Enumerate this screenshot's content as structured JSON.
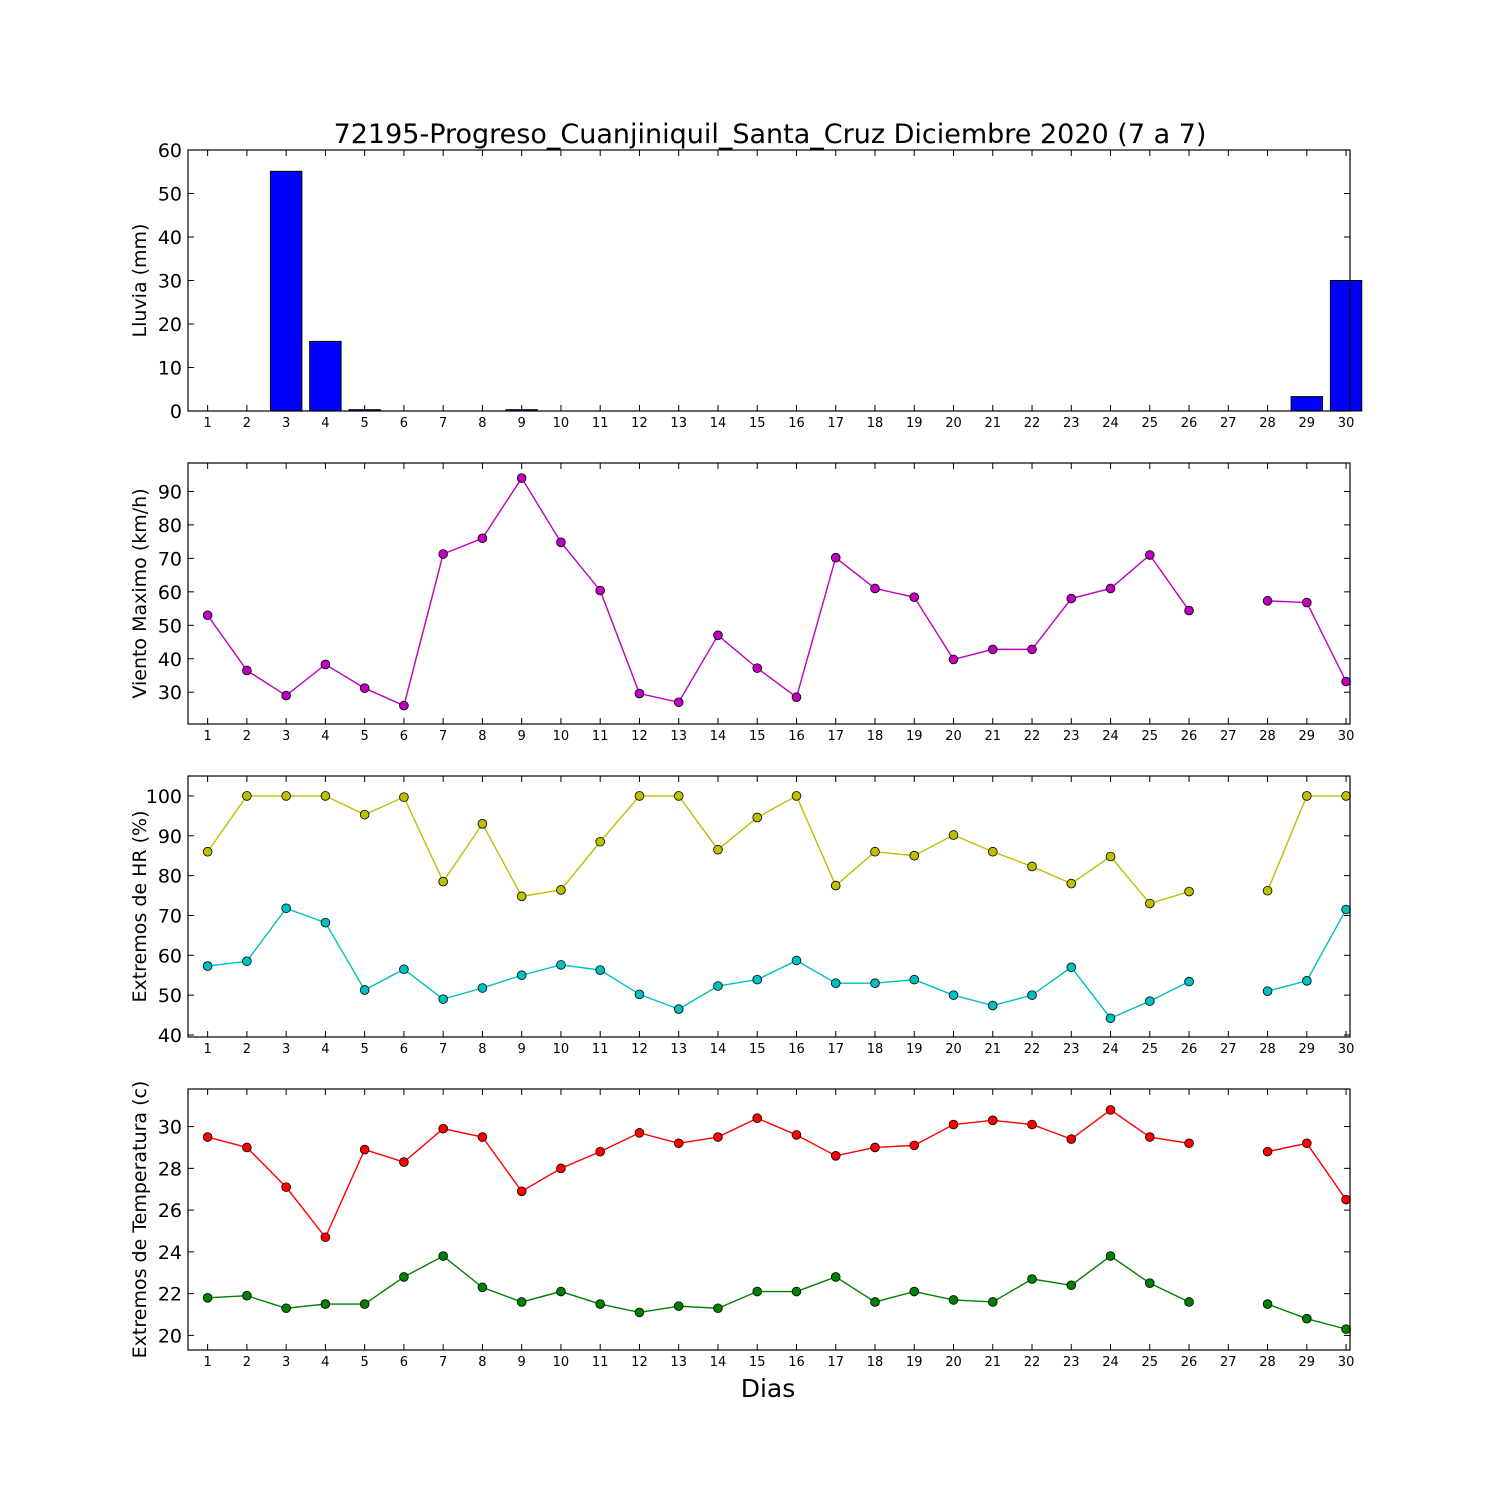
{
  "figure": {
    "title": "72195-Progreso_Cuanjiniquil_Santa_Cruz Diciembre 2020  (7 a 7)",
    "xlabel": "Dias"
  },
  "chart_data": [
    {
      "type": "bar",
      "ylabel": "Lluvia (mm)",
      "ylim": [
        0,
        60
      ],
      "yticks": [
        0,
        10,
        20,
        30,
        40,
        50,
        60
      ],
      "categories": [
        1,
        2,
        3,
        4,
        5,
        6,
        7,
        8,
        9,
        10,
        11,
        12,
        13,
        14,
        15,
        16,
        17,
        18,
        19,
        20,
        21,
        22,
        23,
        24,
        25,
        26,
        27,
        28,
        29,
        30
      ],
      "series": [
        {
          "color": "#0000ff",
          "values": [
            0,
            0,
            55.1,
            16,
            0.3,
            0,
            0,
            0,
            0.3,
            0,
            0,
            0,
            0,
            0,
            0,
            0,
            0,
            0,
            0,
            0,
            0,
            0,
            0,
            0,
            0,
            0,
            0,
            0,
            3.3,
            30
          ]
        }
      ]
    },
    {
      "type": "line",
      "ylabel": "Viento Maximo (km/h)",
      "ylim": [
        20.5,
        98.5
      ],
      "yticks": [
        30,
        40,
        50,
        60,
        70,
        80,
        90
      ],
      "x": [
        1,
        2,
        3,
        4,
        5,
        6,
        7,
        8,
        9,
        10,
        11,
        12,
        13,
        14,
        15,
        16,
        17,
        18,
        19,
        20,
        21,
        22,
        23,
        24,
        25,
        26,
        27,
        28,
        29,
        30
      ],
      "series": [
        {
          "color": "#bf00bf",
          "values": [
            53,
            36.5,
            29,
            38.3,
            31.2,
            26,
            71.3,
            76,
            94,
            74.8,
            60.4,
            29.6,
            27,
            47,
            37.2,
            28.5,
            70.2,
            61,
            58.4,
            39.8,
            42.8,
            42.8,
            58,
            61,
            71,
            54.4,
            null,
            57.3,
            56.8,
            33.2
          ]
        }
      ]
    },
    {
      "type": "line",
      "ylabel": "Extremos de HR (%)",
      "ylim": [
        39.5,
        105
      ],
      "yticks": [
        40,
        50,
        60,
        70,
        80,
        90,
        100
      ],
      "x": [
        1,
        2,
        3,
        4,
        5,
        6,
        7,
        8,
        9,
        10,
        11,
        12,
        13,
        14,
        15,
        16,
        17,
        18,
        19,
        20,
        21,
        22,
        23,
        24,
        25,
        26,
        27,
        28,
        29,
        30
      ],
      "series": [
        {
          "color": "#bfbf00",
          "values": [
            86,
            100,
            100,
            100,
            95.3,
            99.7,
            78.5,
            93,
            74.8,
            76.4,
            88.5,
            100,
            100,
            86.5,
            94.6,
            100,
            77.5,
            86,
            85,
            90.2,
            86,
            82.3,
            78,
            84.8,
            73,
            76,
            null,
            76.2,
            100,
            100
          ]
        },
        {
          "color": "#00bfbf",
          "values": [
            57.3,
            58.5,
            71.8,
            68.2,
            51.3,
            56.5,
            49,
            51.8,
            55,
            57.6,
            56.3,
            50.2,
            46.5,
            52.3,
            53.9,
            58.7,
            53,
            53,
            53.9,
            50,
            47.4,
            50,
            57,
            44.2,
            48.5,
            53.4,
            null,
            51,
            53.6,
            71.5
          ]
        }
      ]
    },
    {
      "type": "line",
      "ylabel": "Extremos de Temperatura (c)",
      "ylim": [
        19.3,
        31.8
      ],
      "yticks": [
        20,
        22,
        24,
        26,
        28,
        30
      ],
      "x": [
        1,
        2,
        3,
        4,
        5,
        6,
        7,
        8,
        9,
        10,
        11,
        12,
        13,
        14,
        15,
        16,
        17,
        18,
        19,
        20,
        21,
        22,
        23,
        24,
        25,
        26,
        27,
        28,
        29,
        30
      ],
      "series": [
        {
          "color": "#ff0000",
          "values": [
            29.5,
            29,
            27.1,
            24.7,
            28.9,
            28.3,
            29.9,
            29.5,
            26.9,
            28,
            28.8,
            29.7,
            29.2,
            29.5,
            30.4,
            29.6,
            28.6,
            29,
            29.1,
            30.1,
            30.3,
            30.1,
            29.4,
            30.8,
            29.5,
            29.2,
            null,
            28.8,
            29.2,
            26.5
          ]
        },
        {
          "color": "#008000",
          "values": [
            21.8,
            21.9,
            21.3,
            21.5,
            21.5,
            22.8,
            23.8,
            22.3,
            21.6,
            22.1,
            21.5,
            21.1,
            21.4,
            21.3,
            22.1,
            22.1,
            22.8,
            21.6,
            22.1,
            21.7,
            21.6,
            22.7,
            22.4,
            23.8,
            22.5,
            21.6,
            null,
            21.5,
            20.8,
            20.3
          ]
        }
      ]
    }
  ]
}
